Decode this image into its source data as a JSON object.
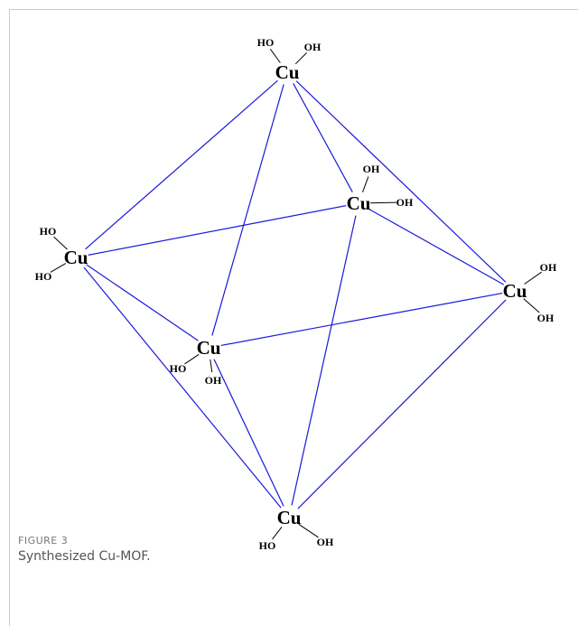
{
  "figure": {
    "nodes": [
      {
        "label": "Cu",
        "groups": [
          "HO",
          "OH"
        ]
      },
      {
        "label": "Cu",
        "groups": [
          "OH",
          "OH"
        ]
      },
      {
        "label": "Cu",
        "groups": [
          "HO",
          "HO"
        ]
      },
      {
        "label": "Cu",
        "groups": [
          "OH",
          "OH"
        ]
      },
      {
        "label": "Cu",
        "groups": [
          "HO",
          "OH"
        ]
      },
      {
        "label": "Cu",
        "groups": [
          "HO",
          "OH"
        ]
      }
    ]
  },
  "caption": {
    "label": "FIGURE 3",
    "text": "Synthesized Cu-MOF."
  }
}
